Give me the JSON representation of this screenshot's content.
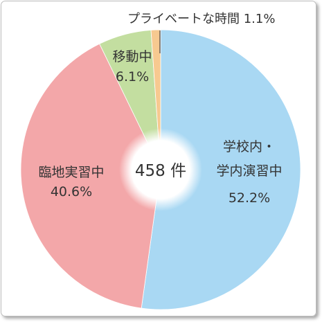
{
  "chart_data": {
    "type": "pie",
    "center_label": "458 件",
    "slices": [
      {
        "label_lines": [
          "学校内・",
          "学内演習中"
        ],
        "percent_text": "52.2%",
        "value": 52.2,
        "color": "#a9d8f3"
      },
      {
        "label_lines": [
          "臨地実習中"
        ],
        "percent_text": "40.6%",
        "value": 40.6,
        "color": "#f3a7a9"
      },
      {
        "label_lines": [
          "移動中"
        ],
        "percent_text": "6.1%",
        "value": 6.1,
        "color": "#c3dea0"
      },
      {
        "label_lines": [
          "プライベートな時間"
        ],
        "percent_text": "1.1%",
        "value": 1.1,
        "color": "#f7c990"
      }
    ],
    "start_angle_deg": 0,
    "direction": "clockwise"
  }
}
